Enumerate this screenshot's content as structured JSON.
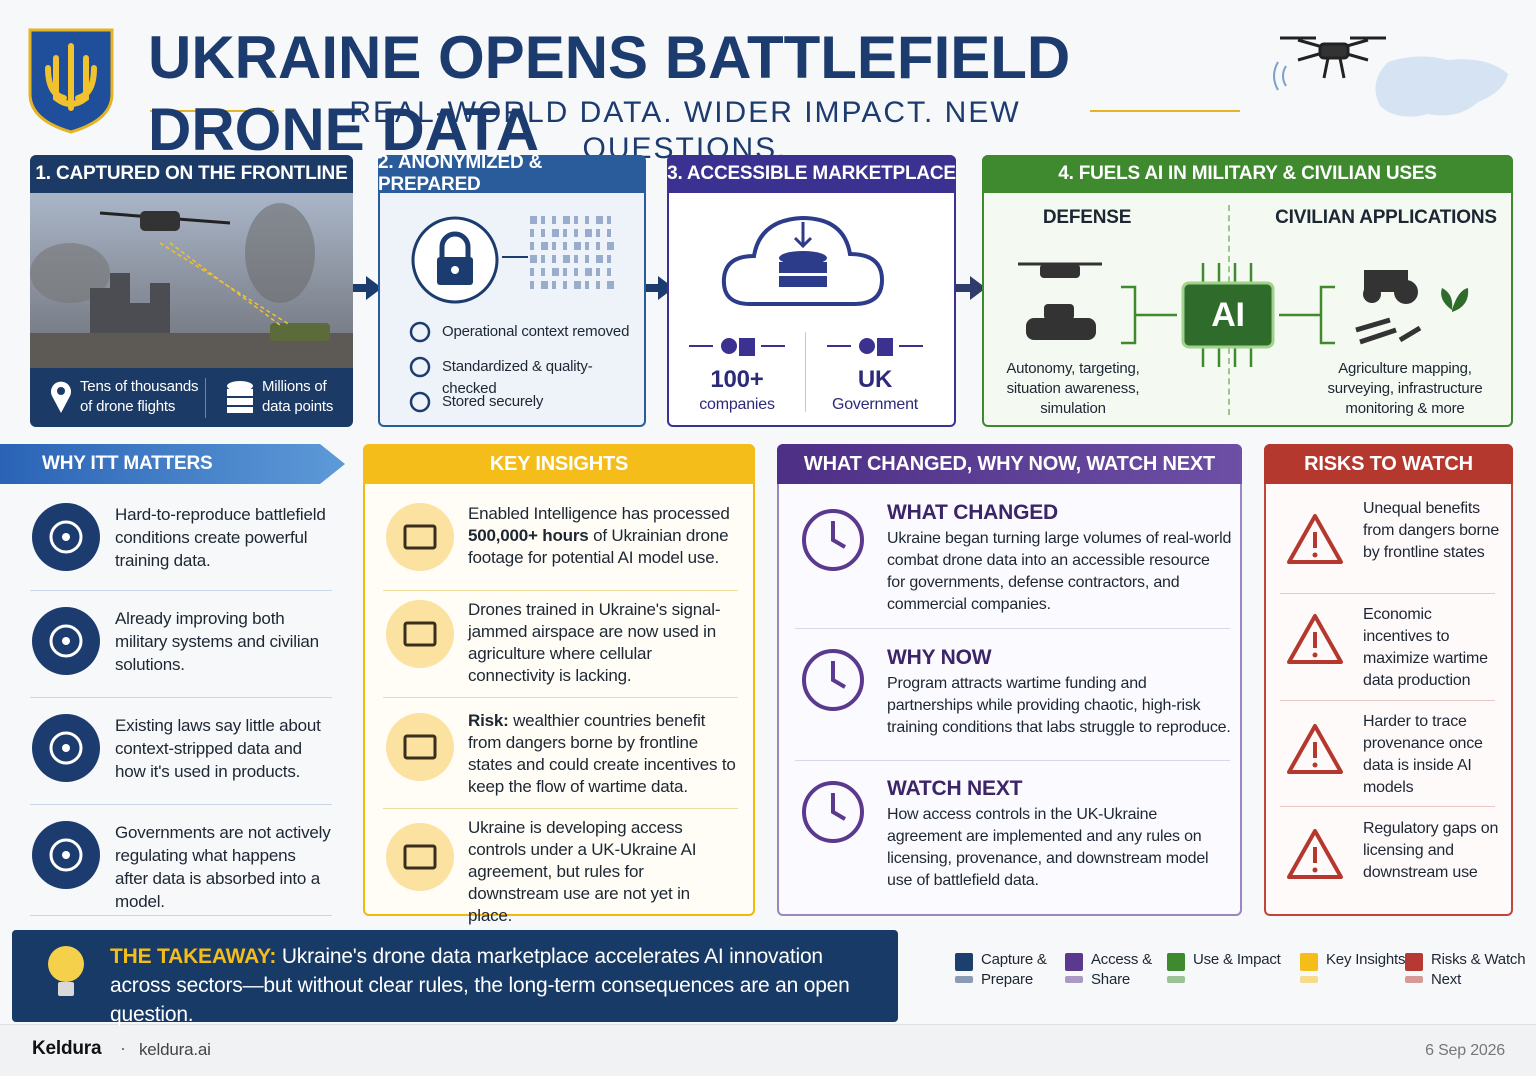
{
  "header": {
    "title": "UKRAINE OPENS BATTLEFIELD DRONE DATA",
    "subtitle": "REAL-WORLD DATA. WIDER IMPACT. NEW QUESTIONS."
  },
  "step1": {
    "title": "1. CAPTURED ON THE FRONTLINE",
    "stats": [
      "Tens of thousands of drone flights",
      "Millions of data points"
    ]
  },
  "step2": {
    "title": "2. ANONYMIZED & PREPARED",
    "items": [
      "Operational context removed",
      "Standardized & quality-checked",
      "Stored securely"
    ]
  },
  "step3": {
    "title": "3. ACCESSIBLE MARKETPLACE",
    "stats": [
      {
        "value": "100+",
        "label": "companies"
      },
      {
        "value": "UK",
        "label": "Government"
      }
    ]
  },
  "step4": {
    "title": "4. FUELS AI IN MILITARY & CIVILIAN USES",
    "ai_label": "AI",
    "defense": {
      "heading": "DEFENSE",
      "text": "Autonomy, targeting, situation awareness, simulation"
    },
    "civilian": {
      "heading": "CIVILIAN APPLICATIONS",
      "text": "Agriculture mapping, surveying, infrastructure monitoring & more"
    }
  },
  "why_it_matters": {
    "title": "WHY ITT MATTERS",
    "items": [
      "Hard-to-reproduce battlefield conditions create powerful training data.",
      "Already improving both military systems and civilian solutions.",
      "Existing laws say little about context-stripped data and how it's used in products.",
      "Governments are not actively regulating what happens after data is absorbed into a model."
    ]
  },
  "key_insights": {
    "title": "KEY INSIGHTS",
    "items": [
      {
        "lead": "Enabled Intelligence has processed",
        "highlight": "500,000+ hours",
        "rest": "of Ukrainian drone footage for potential AI model use."
      },
      {
        "rest": "Drones trained in Ukraine's signal-jammed airspace are now used in agriculture where cellular connectivity is lacking."
      },
      {
        "highlight": "Risk:",
        "rest": "wealthier countries benefit from dangers borne by frontline states and could create incentives to keep the flow of wartime data."
      },
      {
        "rest": "Ukraine is developing access controls under a UK-Ukraine AI agreement, but rules for downstream use are not yet in place."
      }
    ]
  },
  "what_changed": {
    "title": "WHAT CHANGED, WHY NOW, WATCH NEXT",
    "sections": [
      {
        "heading": "WHAT CHANGED",
        "text": "Ukraine began turning large volumes of real-world combat drone data into an accessible resource for governments, defense contractors, and commercial companies."
      },
      {
        "heading": "WHY NOW",
        "text": "Program attracts wartime funding and partnerships while providing chaotic, high-risk training conditions that labs struggle to reproduce."
      },
      {
        "heading": "WATCH NEXT",
        "text": "How access controls in the UK-Ukraine agreement are implemented and any rules on licensing, provenance, and downstream model use of battlefield data."
      }
    ]
  },
  "risks": {
    "title": "RISKS TO WATCH",
    "items": [
      "Unequal benefits from dangers borne by frontline states",
      "Economic incentives to maximize wartime data production",
      "Harder to trace provenance once data is inside AI models",
      "Regulatory gaps on licensing and downstream use"
    ]
  },
  "takeaway": {
    "label": "THE TAKEAWAY:",
    "text": "Ukraine's drone data marketplace accelerates AI innovation across sectors—but without clear rules, the long-term consequences are an open question."
  },
  "legend": {
    "items": [
      {
        "label": "Capture & Prepare",
        "color": "#1c3f6e"
      },
      {
        "label": "Access & Share",
        "color": "#5b3a8e"
      },
      {
        "label": "Use & Impact",
        "color": "#3f8a2e"
      },
      {
        "label": "Key Insights",
        "color": "#f5bd1a"
      },
      {
        "label": "Risks & Watch Next",
        "color": "#b63a33"
      }
    ]
  },
  "footer": {
    "brand": "Keldura",
    "site": "keldura.ai",
    "date": "6 Sep 2026"
  }
}
